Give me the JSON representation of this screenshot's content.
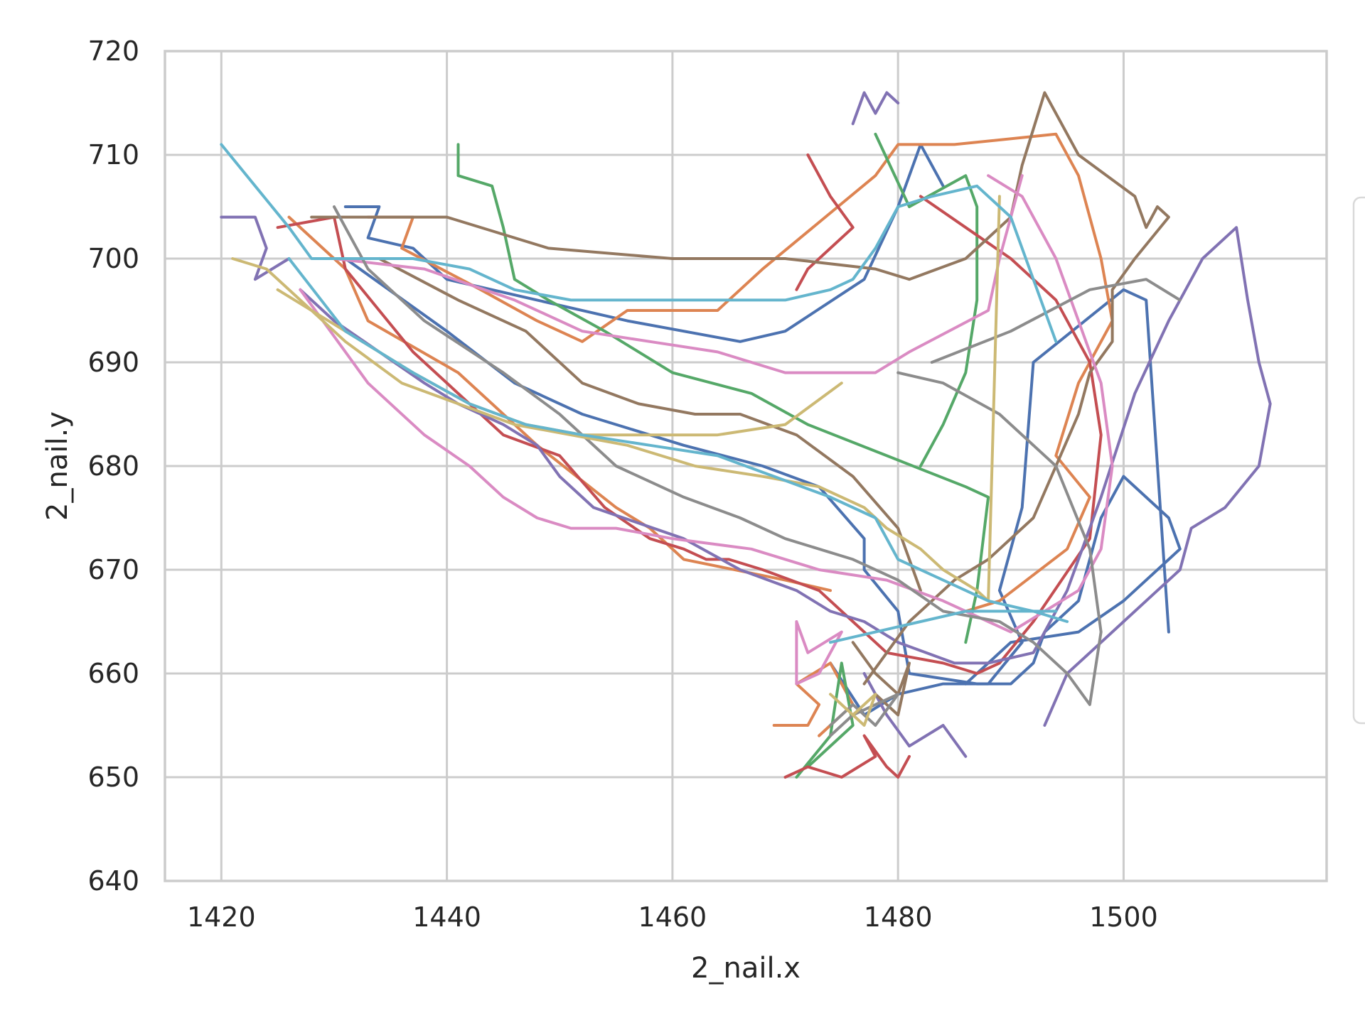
{
  "chart_data": {
    "type": "line",
    "xlabel": "2_nail.x",
    "ylabel": "2_nail.y",
    "xlim": [
      1415,
      1518
    ],
    "ylim": [
      640,
      720
    ],
    "xticks": [
      "1420",
      "1440",
      "1460",
      "1480",
      "1500"
    ],
    "xtick_values": [
      1420,
      1440,
      1460,
      1480,
      1500
    ],
    "yticks": [
      "640",
      "650",
      "660",
      "670",
      "680",
      "690",
      "700",
      "710",
      "720"
    ],
    "ytick_values": [
      640,
      650,
      660,
      670,
      680,
      690,
      700,
      710,
      720
    ],
    "grid": true,
    "legend": "right (partially visible, entries not readable)",
    "palette": [
      "#4c72b0",
      "#dd8452",
      "#55a868",
      "#c44e52",
      "#8172b3",
      "#937860",
      "#da8bc3",
      "#8c8c8c",
      "#ccb974",
      "#64b5cd"
    ],
    "series": [
      {
        "color": "#4c72b0",
        "x": [
          1431,
          1434,
          1433,
          1437,
          1440,
          1448,
          1456,
          1466,
          1470,
          1477,
          1480,
          1482,
          1484
        ],
        "y": [
          705,
          705,
          702,
          701,
          698,
          696,
          694,
          692,
          693,
          698,
          705,
          711,
          707
        ]
      },
      {
        "color": "#4c72b0",
        "x": [
          1431,
          1440,
          1446,
          1452,
          1461,
          1468,
          1473,
          1477,
          1477,
          1480,
          1481,
          1487,
          1490,
          1492,
          1493,
          1496,
          1498,
          1500,
          1504,
          1505,
          1500,
          1496,
          1490,
          1486
        ],
        "y": [
          700,
          693,
          688,
          685,
          682,
          680,
          678,
          673,
          670,
          666,
          660,
          659,
          659,
          661,
          664,
          667,
          675,
          679,
          675,
          672,
          667,
          664,
          663,
          659
        ]
      },
      {
        "color": "#4c72b0",
        "x": [
          1474,
          1477,
          1480,
          1484,
          1488,
          1491,
          1489,
          1491,
          1492,
          1500,
          1502,
          1504
        ],
        "y": [
          661,
          656,
          658,
          659,
          659,
          663,
          668,
          676,
          690,
          697,
          696,
          664
        ]
      },
      {
        "color": "#dd8452",
        "x": [
          1433,
          1437,
          1436,
          1443,
          1448,
          1452,
          1456,
          1464,
          1468,
          1478,
          1480,
          1485,
          1494,
          1496,
          1498,
          1499,
          1496,
          1494,
          1497,
          1495,
          1489,
          1486
        ],
        "y": [
          704,
          704,
          701,
          697,
          694,
          692,
          695,
          695,
          699,
          708,
          711,
          711,
          712,
          708,
          700,
          694,
          688,
          681,
          677,
          672,
          667,
          666
        ]
      },
      {
        "color": "#dd8452",
        "x": [
          1426,
          1431,
          1433,
          1441,
          1444,
          1448,
          1455,
          1458,
          1461,
          1470,
          1474
        ],
        "y": [
          704,
          699,
          694,
          689,
          686,
          682,
          676,
          674,
          671,
          669,
          668
        ]
      },
      {
        "color": "#dd8452",
        "x": [
          1469,
          1472,
          1473,
          1471,
          1474,
          1476,
          1473
        ],
        "y": [
          655,
          655,
          657,
          659,
          661,
          657,
          654
        ]
      },
      {
        "color": "#55a868",
        "x": [
          1441,
          1441,
          1444,
          1445,
          1446,
          1449,
          1454,
          1460,
          1467,
          1472,
          1479,
          1486,
          1488,
          1487,
          1486
        ],
        "y": [
          711,
          708,
          707,
          703,
          698,
          696,
          693,
          689,
          687,
          684,
          681,
          678,
          677,
          668,
          663
        ]
      },
      {
        "color": "#55a868",
        "x": [
          1478,
          1481,
          1486,
          1487,
          1487,
          1486,
          1484,
          1482
        ],
        "y": [
          712,
          705,
          708,
          705,
          696,
          689,
          684,
          680
        ]
      },
      {
        "color": "#55a868",
        "x": [
          1471,
          1474,
          1475,
          1476,
          1472
        ],
        "y": [
          650,
          654,
          661,
          655,
          651
        ]
      },
      {
        "color": "#c44e52",
        "x": [
          1425,
          1430,
          1431,
          1434,
          1437,
          1442,
          1445,
          1450,
          1454,
          1458,
          1461,
          1463,
          1465,
          1468,
          1473,
          1476,
          1479,
          1484,
          1487,
          1489,
          1492,
          1497,
          1498,
          1497,
          1494,
          1490,
          1486,
          1482
        ],
        "y": [
          703,
          704,
          699,
          695,
          691,
          686,
          683,
          681,
          676,
          673,
          672,
          671,
          671,
          670,
          668,
          665,
          662,
          661,
          660,
          661,
          665,
          673,
          683,
          690,
          696,
          700,
          703,
          706
        ]
      },
      {
        "color": "#c44e52",
        "x": [
          1470,
          1472,
          1475,
          1478,
          1477,
          1479,
          1480,
          1481
        ],
        "y": [
          650,
          651,
          650,
          652,
          654,
          651,
          650,
          652
        ]
      },
      {
        "color": "#c44e52",
        "x": [
          1472,
          1474,
          1476,
          1474,
          1472,
          1471
        ],
        "y": [
          710,
          706,
          703,
          701,
          699,
          697
        ]
      },
      {
        "color": "#8172b3",
        "x": [
          1420,
          1423,
          1424,
          1423,
          1426
        ],
        "y": [
          704,
          704,
          701,
          698,
          700
        ]
      },
      {
        "color": "#8172b3",
        "x": [
          1427,
          1430,
          1434,
          1438,
          1441,
          1445,
          1448,
          1450,
          1453,
          1461,
          1466,
          1471,
          1474,
          1477,
          1480,
          1485,
          1488,
          1492,
          1495,
          1498,
          1501,
          1504,
          1507,
          1510,
          1511,
          1512,
          1513,
          1512,
          1509,
          1506,
          1505,
          1503,
          1500,
          1497,
          1495,
          1493
        ],
        "y": [
          697,
          694,
          691,
          688,
          686,
          684,
          682,
          679,
          676,
          673,
          670,
          668,
          666,
          665,
          663,
          661,
          661,
          662,
          668,
          677,
          687,
          694,
          700,
          703,
          696,
          690,
          686,
          680,
          676,
          674,
          670,
          668,
          665,
          662,
          660,
          655
        ]
      },
      {
        "color": "#8172b3",
        "x": [
          1476,
          1477,
          1478,
          1479,
          1480
        ],
        "y": [
          713,
          716,
          714,
          716,
          715
        ]
      },
      {
        "color": "#8172b3",
        "x": [
          1477,
          1479,
          1481,
          1484,
          1486
        ],
        "y": [
          660,
          656,
          653,
          655,
          652
        ]
      },
      {
        "color": "#937860",
        "x": [
          1428,
          1440,
          1449,
          1460,
          1470,
          1478,
          1481,
          1486,
          1490,
          1491,
          1493,
          1496,
          1501,
          1502,
          1503,
          1504,
          1501,
          1499,
          1499,
          1497,
          1496,
          1494,
          1492,
          1488,
          1485,
          1483,
          1481,
          1479,
          1477
        ],
        "y": [
          704,
          704,
          701,
          700,
          700,
          699,
          698,
          700,
          704,
          709,
          716,
          710,
          706,
          703,
          705,
          704,
          700,
          697,
          692,
          689,
          685,
          680,
          675,
          671,
          669,
          667,
          665,
          662,
          659
        ]
      },
      {
        "color": "#937860",
        "x": [
          1434,
          1441,
          1447,
          1452,
          1457,
          1462,
          1466,
          1471,
          1476,
          1480,
          1482
        ],
        "y": [
          700,
          696,
          693,
          688,
          686,
          685,
          685,
          683,
          679,
          674,
          668
        ]
      },
      {
        "color": "#937860",
        "x": [
          1476,
          1478,
          1480,
          1481,
          1480,
          1478
        ],
        "y": [
          663,
          660,
          658,
          661,
          656,
          658
        ]
      },
      {
        "color": "#da8bc3",
        "x": [
          1427,
          1433,
          1438,
          1442,
          1445,
          1448,
          1451,
          1455,
          1460,
          1467,
          1473,
          1479,
          1484,
          1488,
          1490,
          1496,
          1498,
          1499,
          1498,
          1496,
          1494,
          1491,
          1488
        ],
        "y": [
          697,
          688,
          683,
          680,
          677,
          675,
          674,
          674,
          673,
          672,
          670,
          669,
          667,
          665,
          664,
          668,
          672,
          680,
          688,
          694,
          700,
          706,
          708
        ]
      },
      {
        "color": "#da8bc3",
        "x": [
          1430,
          1438,
          1446,
          1452,
          1458,
          1464,
          1470,
          1478,
          1481,
          1488,
          1489,
          1491
        ],
        "y": [
          700,
          699,
          696,
          693,
          692,
          691,
          689,
          689,
          691,
          695,
          700,
          708
        ]
      },
      {
        "color": "#da8bc3",
        "x": [
          1471,
          1472,
          1475,
          1473,
          1471,
          1471
        ],
        "y": [
          665,
          662,
          664,
          660,
          659,
          665
        ]
      },
      {
        "color": "#8c8c8c",
        "x": [
          1430,
          1433,
          1438,
          1445,
          1450,
          1455,
          1461,
          1466,
          1470,
          1476,
          1480,
          1484,
          1489,
          1492,
          1495,
          1497,
          1498,
          1497,
          1494,
          1489,
          1484,
          1480
        ],
        "y": [
          705,
          699,
          694,
          689,
          685,
          680,
          677,
          675,
          673,
          671,
          669,
          666,
          665,
          663,
          660,
          657,
          664,
          672,
          680,
          685,
          688,
          689
        ]
      },
      {
        "color": "#8c8c8c",
        "x": [
          1474,
          1476,
          1478,
          1480,
          1476,
          1474
        ],
        "y": [
          655,
          657,
          655,
          658,
          656,
          654
        ]
      },
      {
        "color": "#8c8c8c",
        "x": [
          1483,
          1490,
          1497,
          1502,
          1505
        ],
        "y": [
          690,
          693,
          697,
          698,
          696
        ]
      },
      {
        "color": "#ccb974",
        "x": [
          1421,
          1424,
          1427,
          1431,
          1436,
          1441,
          1446,
          1451,
          1456,
          1462,
          1468,
          1473,
          1477,
          1479,
          1482,
          1484,
          1487,
          1488,
          1489
        ],
        "y": [
          700,
          699,
          696,
          692,
          688,
          686,
          684,
          683,
          682,
          680,
          679,
          678,
          676,
          674,
          672,
          670,
          668,
          667,
          706
        ]
      },
      {
        "color": "#ccb974",
        "x": [
          1425,
          1431,
          1437,
          1442,
          1447,
          1452,
          1458,
          1464,
          1470,
          1475
        ],
        "y": [
          697,
          693,
          689,
          686,
          684,
          683,
          683,
          683,
          684,
          688
        ]
      },
      {
        "color": "#ccb974",
        "x": [
          1474,
          1476,
          1478,
          1477,
          1475
        ],
        "y": [
          658,
          656,
          658,
          655,
          657
        ]
      },
      {
        "color": "#64b5cd",
        "x": [
          1420,
          1423,
          1426,
          1428,
          1432,
          1437,
          1442,
          1446,
          1451,
          1456,
          1461,
          1466,
          1470,
          1474,
          1476,
          1478,
          1480,
          1483,
          1487,
          1490,
          1492,
          1494
        ],
        "y": [
          711,
          707,
          703,
          700,
          700,
          700,
          699,
          697,
          696,
          696,
          696,
          696,
          696,
          697,
          698,
          701,
          705,
          706,
          707,
          704,
          698,
          692
        ]
      },
      {
        "color": "#64b5cd",
        "x": [
          1426,
          1431,
          1437,
          1442,
          1447,
          1452,
          1458,
          1464,
          1469,
          1474,
          1478,
          1480,
          1484,
          1488,
          1492,
          1495
        ],
        "y": [
          700,
          693,
          689,
          686,
          684,
          683,
          682,
          681,
          679,
          677,
          675,
          671,
          669,
          667,
          666,
          665
        ]
      },
      {
        "color": "#64b5cd",
        "x": [
          1474,
          1478,
          1482,
          1486,
          1490,
          1494
        ],
        "y": [
          663,
          664,
          665,
          666,
          666,
          666
        ]
      }
    ]
  }
}
